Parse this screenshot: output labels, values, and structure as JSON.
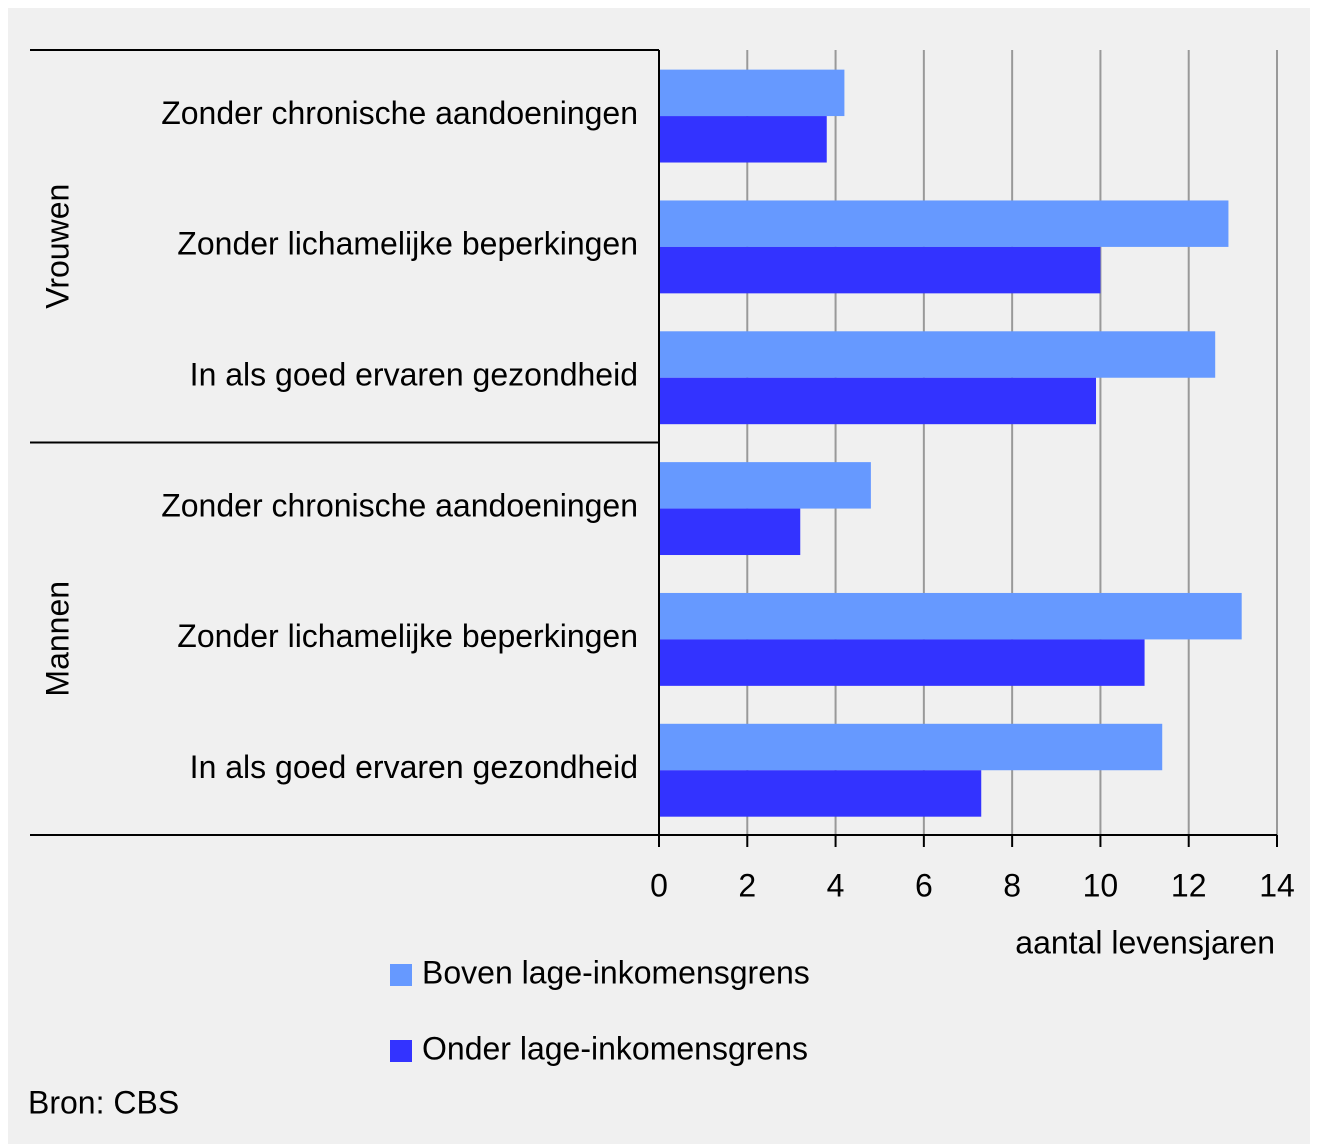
{
  "chart_data": {
    "type": "hbar",
    "groups": [
      "Vrouwen",
      "Mannen"
    ],
    "categories": [
      "Zonder chronische aandoeningen",
      "Zonder lichamelijke beperkingen",
      "In als goed ervaren gezondheid",
      "Zonder chronische aandoeningen",
      "Zonder lichamelijke beperkingen",
      "In als goed ervaren gezondheid"
    ],
    "series": [
      {
        "name": "Boven lage-inkomensgrens",
        "color": "#6699ff",
        "values": [
          4.2,
          12.9,
          12.6,
          4.8,
          13.2,
          11.4
        ]
      },
      {
        "name": "Onder lage-inkomensgrens",
        "color": "#3333ff",
        "values": [
          3.8,
          10.0,
          9.9,
          3.2,
          11.0,
          7.3
        ]
      }
    ],
    "xlabel": "aantal levensjaren",
    "xlim": [
      0,
      14
    ],
    "xticks": [
      0,
      2,
      4,
      6,
      8,
      10,
      12,
      14
    ],
    "grid": true,
    "source": "Bron: CBS"
  }
}
